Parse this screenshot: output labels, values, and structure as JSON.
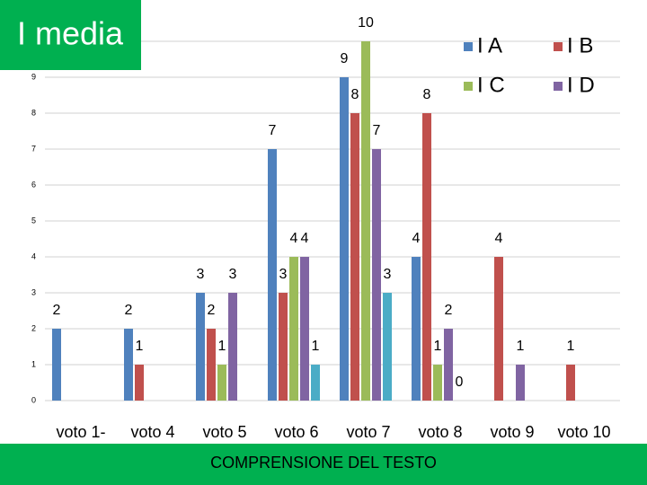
{
  "chart_data": {
    "type": "bar",
    "title": "I media",
    "x_label": "COMPRENSIONE DEL TESTO",
    "categories": [
      "voto 1-",
      "voto 4",
      "voto 5",
      "voto 6",
      "voto 7",
      "voto 8",
      "voto 9",
      "voto 10"
    ],
    "series": [
      {
        "name": "I A",
        "color": "#4f81bd",
        "values": [
          2,
          2,
          3,
          7,
          9,
          4,
          null,
          null
        ]
      },
      {
        "name": "I B",
        "color": "#c0504d",
        "values": [
          null,
          1,
          2,
          3,
          8,
          8,
          4,
          1
        ]
      },
      {
        "name": "I C",
        "color": "#9bbb59",
        "values": [
          null,
          null,
          1,
          4,
          10,
          1,
          null,
          null
        ]
      },
      {
        "name": "I D",
        "color": "#8064a2",
        "values": [
          null,
          null,
          3,
          4,
          7,
          2,
          1,
          null
        ]
      },
      {
        "color": "#4bacc6",
        "values": [
          null,
          null,
          null,
          1,
          3,
          0,
          null,
          null
        ]
      }
    ],
    "ylim": [
      0,
      10
    ],
    "yticks": [
      0,
      1,
      2,
      3,
      4,
      5,
      6,
      7,
      8,
      9
    ],
    "grid": true,
    "legend": "top-right"
  }
}
